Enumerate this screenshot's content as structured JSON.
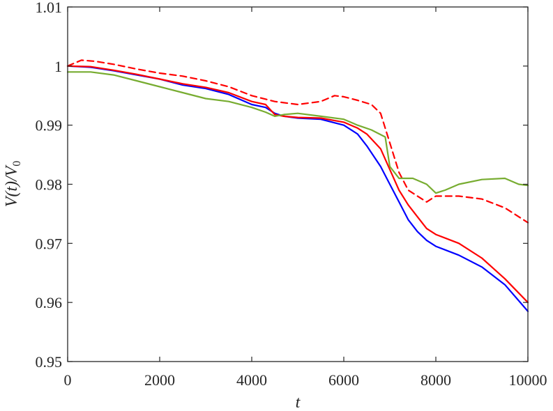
{
  "chart_data": {
    "type": "line",
    "title": "",
    "xlabel": "t",
    "ylabel": "V(t)/V0",
    "ylabel_parts": {
      "pre": "V(t)/V",
      "sub": "0"
    },
    "xlim": [
      0,
      10000
    ],
    "ylim": [
      0.95,
      1.01
    ],
    "xticks": [
      0,
      2000,
      4000,
      6000,
      8000,
      10000
    ],
    "xtick_labels": [
      "0",
      "2000",
      "4000",
      "6000",
      "8000",
      "10000"
    ],
    "yticks": [
      0.95,
      0.96,
      0.97,
      0.98,
      0.99,
      1.0,
      1.01
    ],
    "ytick_labels": [
      "0.95",
      "0.96",
      "0.97",
      "0.98",
      "0.99",
      "1",
      "1.01"
    ],
    "grid": false,
    "legend": "none",
    "series": [
      {
        "color": "#0000ff",
        "dash": "solid",
        "x": [
          0,
          500,
          1000,
          1500,
          2000,
          2500,
          3000,
          3500,
          4000,
          4300,
          4500,
          4700,
          5000,
          5500,
          6000,
          6300,
          6500,
          6800,
          7000,
          7200,
          7400,
          7600,
          7800,
          8000,
          8500,
          9000,
          9500,
          10000
        ],
        "y": [
          1.0,
          0.9998,
          0.9992,
          0.9985,
          0.9978,
          0.9968,
          0.9962,
          0.9952,
          0.9935,
          0.993,
          0.992,
          0.9915,
          0.9912,
          0.991,
          0.99,
          0.9885,
          0.9865,
          0.983,
          0.98,
          0.977,
          0.974,
          0.972,
          0.9705,
          0.9695,
          0.968,
          0.966,
          0.963,
          0.9585
        ]
      },
      {
        "color": "#ff0000",
        "dash": "solid",
        "x": [
          0,
          500,
          1000,
          1500,
          2000,
          2500,
          3000,
          3500,
          4000,
          4300,
          4500,
          4700,
          5000,
          5500,
          6000,
          6300,
          6500,
          6800,
          7000,
          7200,
          7400,
          7600,
          7800,
          8000,
          8500,
          9000,
          9500,
          10000
        ],
        "y": [
          1.0,
          0.9999,
          0.9993,
          0.9986,
          0.9978,
          0.997,
          0.9964,
          0.9955,
          0.994,
          0.9935,
          0.9918,
          0.9915,
          0.9913,
          0.9912,
          0.9905,
          0.9895,
          0.9885,
          0.986,
          0.9825,
          0.979,
          0.9765,
          0.9745,
          0.9725,
          0.9715,
          0.97,
          0.9675,
          0.964,
          0.96
        ]
      },
      {
        "color": "#ff0000",
        "dash": "dashed",
        "x": [
          0,
          300,
          600,
          1000,
          1500,
          2000,
          2500,
          3000,
          3500,
          4000,
          4500,
          5000,
          5500,
          5800,
          6000,
          6300,
          6600,
          6800,
          7000,
          7200,
          7400,
          7600,
          7800,
          8000,
          8500,
          9000,
          9500,
          10000
        ],
        "y": [
          1.0,
          1.001,
          1.0008,
          1.0003,
          0.9995,
          0.9988,
          0.9983,
          0.9975,
          0.9965,
          0.995,
          0.994,
          0.9935,
          0.994,
          0.995,
          0.9948,
          0.9942,
          0.9935,
          0.992,
          0.987,
          0.982,
          0.979,
          0.978,
          0.977,
          0.978,
          0.978,
          0.9775,
          0.976,
          0.9735
        ]
      },
      {
        "color": "#77ac30",
        "dash": "solid",
        "x": [
          0,
          500,
          1000,
          1500,
          2000,
          2500,
          3000,
          3500,
          4000,
          4300,
          4500,
          4700,
          5000,
          5500,
          6000,
          6300,
          6600,
          6900,
          7000,
          7200,
          7500,
          7800,
          8000,
          8200,
          8500,
          9000,
          9500,
          9800,
          10000
        ],
        "y": [
          0.999,
          0.999,
          0.9985,
          0.9975,
          0.9965,
          0.9955,
          0.9945,
          0.994,
          0.993,
          0.9922,
          0.9915,
          0.9918,
          0.992,
          0.9915,
          0.991,
          0.99,
          0.9892,
          0.988,
          0.983,
          0.981,
          0.981,
          0.98,
          0.9785,
          0.979,
          0.98,
          0.9808,
          0.981,
          0.98,
          0.9798
        ]
      }
    ]
  }
}
